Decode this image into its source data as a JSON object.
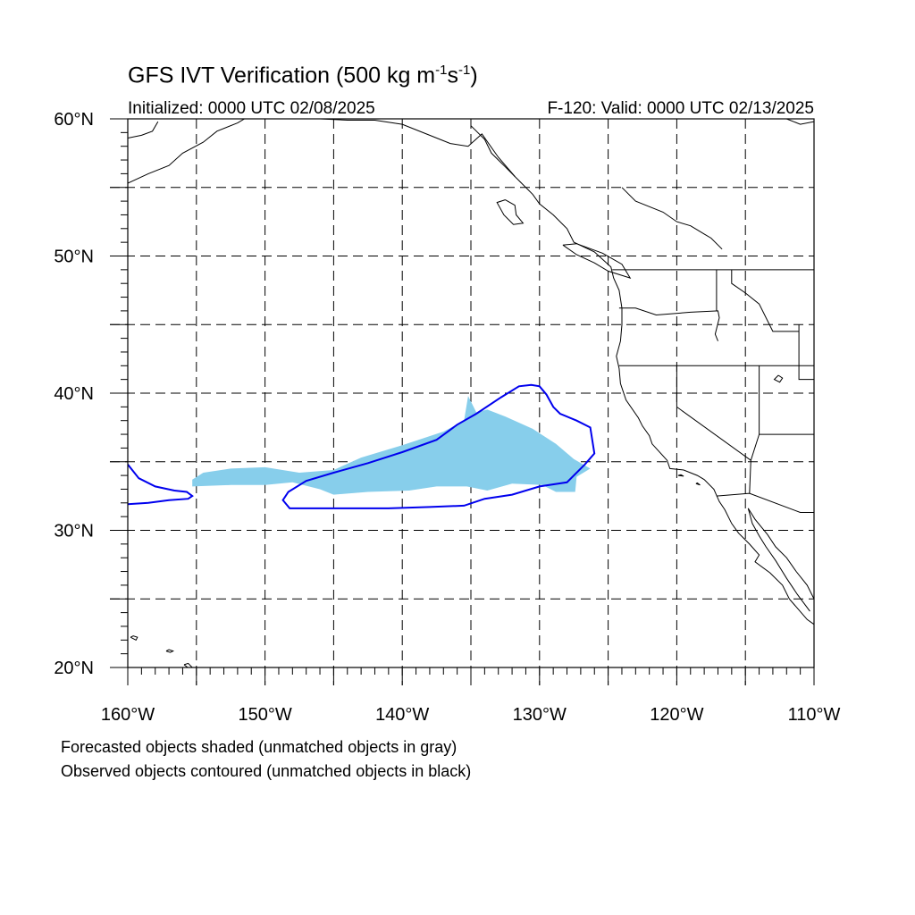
{
  "title": {
    "prefix": "GFS IVT Verification (500 kg m",
    "exp1": "-1",
    "mid": "s",
    "exp2": "-1",
    "suffix": ")"
  },
  "subtitle_left": "Initialized: 0000 UTC 02/08/2025",
  "subtitle_right": "F-120: Valid: 0000 UTC 02/13/2025",
  "map": {
    "lon_range": [
      -160,
      -110
    ],
    "lat_range": [
      20,
      60
    ],
    "grid": "dashed, every 5 degrees",
    "lat_ticks": [
      "20°N",
      "30°N",
      "40°N",
      "50°N",
      "60°N"
    ],
    "lon_ticks": [
      "160°W",
      "150°W",
      "140°W",
      "130°W",
      "120°W",
      "110°W"
    ],
    "colors": {
      "forecast_fill": "#87ceeb",
      "observed_contour": "#0000ee",
      "coastline": "#000000",
      "grid": "#000000"
    },
    "forecast_object": {
      "polygon_lonlat": [
        [
          -155.3,
          33.7
        ],
        [
          -154.5,
          34.2
        ],
        [
          -152.5,
          34.5
        ],
        [
          -150.0,
          34.6
        ],
        [
          -147.5,
          34.2
        ],
        [
          -145.0,
          34.4
        ],
        [
          -143.0,
          35.3
        ],
        [
          -140.0,
          36.2
        ],
        [
          -137.0,
          37.2
        ],
        [
          -135.5,
          38.0
        ],
        [
          -135.2,
          39.8
        ],
        [
          -134.6,
          38.6
        ],
        [
          -133.8,
          38.8
        ],
        [
          -132.5,
          38.3
        ],
        [
          -130.5,
          37.4
        ],
        [
          -128.8,
          36.3
        ],
        [
          -127.5,
          35.2
        ],
        [
          -126.3,
          34.5
        ],
        [
          -127.3,
          33.9
        ],
        [
          -127.4,
          32.8
        ],
        [
          -128.8,
          32.8
        ],
        [
          -129.8,
          33.3
        ],
        [
          -132.0,
          33.4
        ],
        [
          -133.8,
          32.9
        ],
        [
          -135.3,
          33.2
        ],
        [
          -137.5,
          33.2
        ],
        [
          -139.5,
          32.9
        ],
        [
          -142.5,
          32.8
        ],
        [
          -145.0,
          32.6
        ],
        [
          -146.0,
          33.0
        ],
        [
          -148.0,
          33.5
        ],
        [
          -150.0,
          33.3
        ],
        [
          -152.5,
          33.3
        ],
        [
          -155.3,
          33.2
        ]
      ]
    },
    "observed_objects": [
      {
        "polygon_lonlat": [
          [
            -130.6,
            40.6
          ],
          [
            -131.5,
            40.5
          ],
          [
            -132.8,
            39.7
          ],
          [
            -134.6,
            38.5
          ],
          [
            -136.0,
            37.7
          ],
          [
            -137.5,
            36.6
          ],
          [
            -140.0,
            35.7
          ],
          [
            -142.5,
            34.9
          ],
          [
            -145.0,
            34.2
          ],
          [
            -147.0,
            33.6
          ],
          [
            -148.3,
            32.8
          ],
          [
            -148.7,
            32.2
          ],
          [
            -148.2,
            31.6
          ],
          [
            -146.0,
            31.6
          ],
          [
            -144.0,
            31.6
          ],
          [
            -141.0,
            31.6
          ],
          [
            -138.0,
            31.7
          ],
          [
            -135.5,
            31.8
          ],
          [
            -134.0,
            32.3
          ],
          [
            -132.0,
            32.6
          ],
          [
            -130.0,
            33.2
          ],
          [
            -128.0,
            33.5
          ],
          [
            -126.7,
            34.8
          ],
          [
            -126.0,
            35.6
          ],
          [
            -126.3,
            37.5
          ],
          [
            -127.3,
            38.0
          ],
          [
            -128.5,
            38.5
          ],
          [
            -129.0,
            39.0
          ],
          [
            -129.5,
            39.9
          ],
          [
            -130.0,
            40.5
          ]
        ]
      },
      {
        "polyline_lonlat": [
          [
            -160,
            34.8
          ],
          [
            -159.2,
            33.8
          ],
          [
            -158.0,
            33.2
          ],
          [
            -156.6,
            32.9
          ],
          [
            -155.7,
            32.8
          ],
          [
            -155.3,
            32.5
          ],
          [
            -155.6,
            32.3
          ],
          [
            -157.0,
            32.2
          ],
          [
            -158.5,
            32.0
          ],
          [
            -160,
            31.9
          ]
        ]
      }
    ],
    "states_visible": true,
    "coastlines_visible": true
  },
  "legend": {
    "line1": "Forecasted objects shaded (unmatched objects in gray)",
    "line2": "Observed objects contoured (unmatched objects in black)"
  }
}
